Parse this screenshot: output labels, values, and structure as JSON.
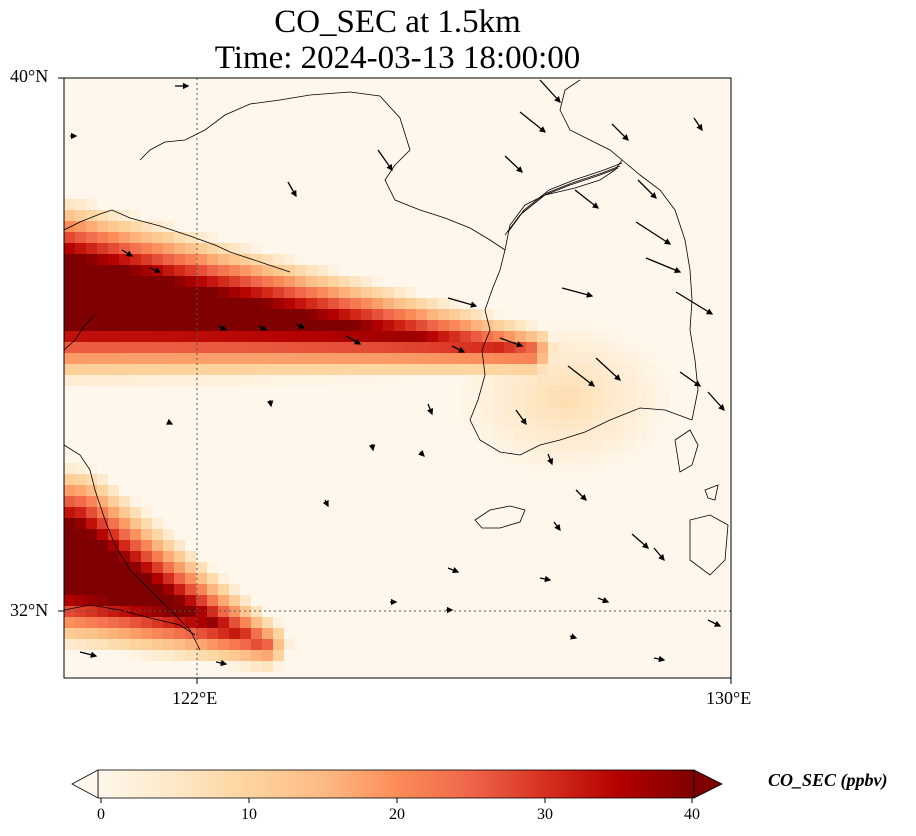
{
  "title": {
    "line1": "CO_SEC at 1.5km",
    "line2": "Time: 2024-03-13 18:00:00"
  },
  "axes": {
    "lat_ticks": [
      "40°N",
      "32°N"
    ],
    "lon_ticks": [
      "122°E",
      "130°E"
    ],
    "lon_range": [
      120,
      130
    ],
    "lat_range": [
      31,
      40
    ],
    "gridlines": "dotted at 122°E and 32°N"
  },
  "colorbar": {
    "label": "CO_SEC (ppbv)",
    "ticks": [
      "0",
      "10",
      "20",
      "30",
      "40"
    ],
    "min": 0,
    "max": 40,
    "colormap": "OrRd",
    "colors": [
      "#fff7ec",
      "#fee8c8",
      "#fdd49e",
      "#fdbb84",
      "#fc8d59",
      "#ef6548",
      "#d7301f",
      "#b30000",
      "#7f0000"
    ],
    "extend": "both"
  },
  "chart_data": {
    "type": "heatmap",
    "variable": "CO_SEC",
    "units": "ppbv",
    "level": "1.5km",
    "features": [
      {
        "desc": "plume",
        "from": [
          120.0,
          36.8
        ],
        "to": [
          127.0,
          35.9
        ],
        "peak": 40
      },
      {
        "desc": "plume",
        "from": [
          120.0,
          32.8
        ],
        "to": [
          123.0,
          31.5
        ],
        "peak": 40
      },
      {
        "desc": "enhanced",
        "center": [
          127.5,
          35.2
        ],
        "value": 8
      }
    ],
    "wind_vectors": "present"
  }
}
